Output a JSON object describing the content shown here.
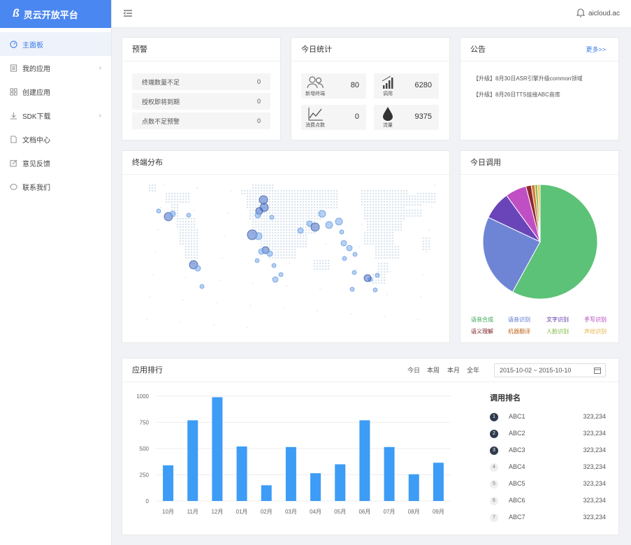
{
  "app": {
    "title": "灵云开放平台",
    "logo_mark": "ß"
  },
  "sidebar": {
    "items": [
      {
        "label": "主面板",
        "icon": "dashboard-icon",
        "active": true
      },
      {
        "label": "我的应用",
        "icon": "document-icon",
        "has_children": true
      },
      {
        "label": "创建应用",
        "icon": "grid-icon"
      },
      {
        "label": "SDK下载",
        "icon": "download-icon",
        "has_children": true
      },
      {
        "label": "文档中心",
        "icon": "file-icon"
      },
      {
        "label": "意见反馈",
        "icon": "edit-icon"
      },
      {
        "label": "联系我们",
        "icon": "chat-icon"
      }
    ]
  },
  "header": {
    "user": "aicloud.ac"
  },
  "alerts": {
    "title": "预警",
    "rows": [
      {
        "label": "终端数量不足",
        "value": "0"
      },
      {
        "label": "授权即将到期",
        "value": "0"
      },
      {
        "label": "点数不足预警",
        "value": "0"
      }
    ]
  },
  "today_stats": {
    "title": "今日统计",
    "items": [
      {
        "label": "新增终端",
        "value": "80",
        "icon": "users-icon"
      },
      {
        "label": "调用",
        "value": "6280",
        "icon": "signal-bars-icon"
      },
      {
        "label": "消费点数",
        "value": "0",
        "icon": "line-chart-icon"
      },
      {
        "label": "流量",
        "value": "9375",
        "icon": "droplet-icon"
      }
    ]
  },
  "notices": {
    "title": "公告",
    "more": "更多>>",
    "items": [
      "【升级】8月30日ASR引擎升级common领域",
      "【升级】8月26日TTS挂接ABC音库"
    ]
  },
  "terminal_map": {
    "title": "终端分布"
  },
  "today_calls": {
    "title": "今日调用",
    "legend": [
      {
        "label": "语音合成",
        "color": "#3aa553"
      },
      {
        "label": "语音识别",
        "color": "#5a6fd0"
      },
      {
        "label": "文字识别",
        "color": "#5b33a8"
      },
      {
        "label": "手写识别",
        "color": "#b13db8"
      },
      {
        "label": "语义理解",
        "color": "#7a1f22"
      },
      {
        "label": "机器翻译",
        "color": "#c06a22"
      },
      {
        "label": "人脸识别",
        "color": "#7ab33a"
      },
      {
        "label": "声纹识别",
        "color": "#e7b340"
      }
    ]
  },
  "app_ranking": {
    "title": "应用排行",
    "ranges": [
      "今日",
      "本周",
      "本月",
      "全年"
    ],
    "date_range": "2015-10-02 ~ 2015-10-10",
    "rank_title": "调用排名",
    "rank": [
      {
        "num": "1",
        "name": "ABC1",
        "value": "323,234"
      },
      {
        "num": "2",
        "name": "ABC2",
        "value": "323,234"
      },
      {
        "num": "3",
        "name": "ABC3",
        "value": "323,234"
      },
      {
        "num": "4",
        "name": "ABC4",
        "value": "323,234"
      },
      {
        "num": "5",
        "name": "ABC5",
        "value": "323,234"
      },
      {
        "num": "6",
        "name": "ABC6",
        "value": "323,234"
      },
      {
        "num": "7",
        "name": "ABC7",
        "value": "323,234"
      }
    ]
  },
  "chart_data": [
    {
      "type": "pie",
      "categories": [
        "语音合成",
        "语音识别",
        "文字识别",
        "手写识别",
        "语义理解",
        "机器翻译",
        "人脸识别",
        "声纹识别"
      ],
      "values": [
        58,
        24,
        8,
        6,
        1.5,
        1,
        0.8,
        0.7
      ],
      "colors": [
        "#5cc277",
        "#6e85d6",
        "#6a45b9",
        "#c04fc4",
        "#8c2a2e",
        "#d47a2e",
        "#8fbf4f",
        "#efc35a"
      ]
    },
    {
      "type": "bar",
      "categories": [
        "10月",
        "11月",
        "12月",
        "01月",
        "02月",
        "03月",
        "04月",
        "05月",
        "06月",
        "07月",
        "08月",
        "09月"
      ],
      "values": [
        340,
        770,
        990,
        520,
        150,
        515,
        265,
        350,
        770,
        515,
        255,
        365
      ],
      "ylim": [
        0,
        1000
      ],
      "yticks": [
        "0",
        "250",
        "500",
        "750",
        "1000"
      ],
      "color": "#3d9cf5"
    }
  ]
}
